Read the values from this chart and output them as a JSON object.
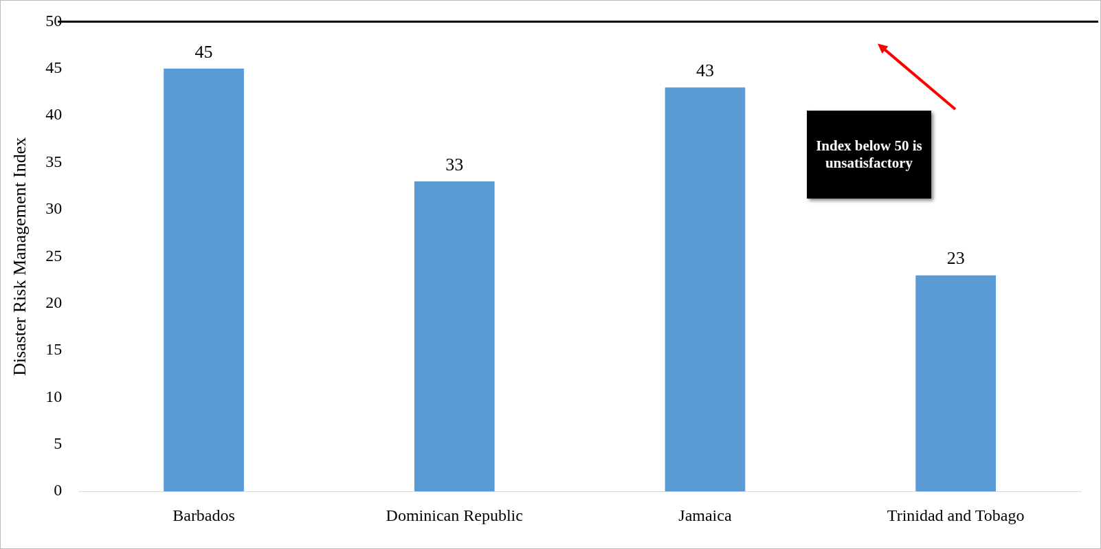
{
  "chart_data": {
    "type": "bar",
    "ylabel": "Disaster Risk Management Index",
    "categories": [
      "Barbados",
      "Dominican Republic",
      "Jamaica",
      "Trinidad and Tobago"
    ],
    "values": [
      45,
      33,
      43,
      23
    ],
    "color": "#5b9bd5",
    "ylim": [
      0,
      50
    ],
    "yticks": [
      0,
      5,
      10,
      15,
      20,
      25,
      30,
      35,
      40,
      45,
      50
    ],
    "grid": false,
    "legend": false,
    "data_labels": true,
    "ref_lines": [
      {
        "axis": "y",
        "value": 50,
        "color": "#000000"
      }
    ],
    "annotations": [
      "Index below 50 is unsatisfactory"
    ]
  }
}
